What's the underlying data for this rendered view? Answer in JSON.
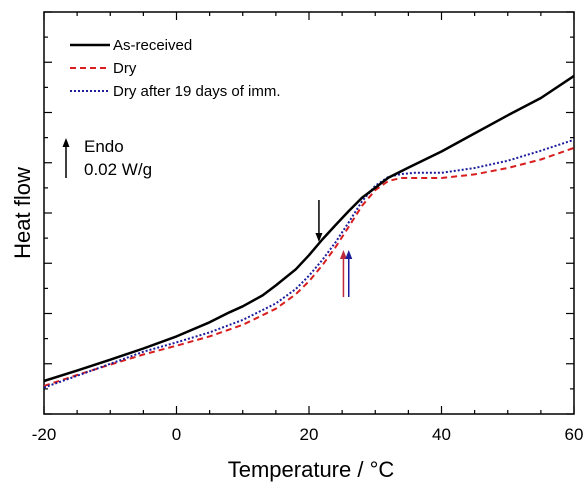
{
  "chart_data": {
    "type": "line",
    "xlabel": "Temperature / °C",
    "ylabel": "Heat flow",
    "xlim": [
      -20,
      60
    ],
    "ylim": [
      0,
      1
    ],
    "x_ticks": [
      -20,
      0,
      20,
      40,
      60
    ],
    "y_ticks_labeled": false,
    "grid": false,
    "legend_position": "top-left",
    "series": [
      {
        "name": "As-received",
        "color": "#000000",
        "style": "solid",
        "x": [
          -20,
          -15,
          -10,
          -5,
          0,
          5,
          8,
          10,
          13,
          15,
          18,
          20,
          22,
          24,
          26,
          28,
          30,
          32,
          35,
          40,
          45,
          50,
          55,
          60
        ],
        "y": [
          0.082,
          0.108,
          0.135,
          0.163,
          0.193,
          0.228,
          0.253,
          0.268,
          0.295,
          0.32,
          0.36,
          0.395,
          0.434,
          0.47,
          0.505,
          0.538,
          0.563,
          0.588,
          0.613,
          0.653,
          0.698,
          0.743,
          0.786,
          0.841
        ]
      },
      {
        "name": "Dry",
        "color": "#d81e1e",
        "style": "dashed",
        "x": [
          -20,
          -15,
          -10,
          -5,
          0,
          5,
          10,
          15,
          18,
          20,
          22,
          24,
          26,
          28,
          30,
          32,
          34,
          36,
          40,
          45,
          50,
          55,
          60
        ],
        "y": [
          0.07,
          0.097,
          0.123,
          0.148,
          0.17,
          0.193,
          0.222,
          0.262,
          0.298,
          0.33,
          0.37,
          0.415,
          0.466,
          0.518,
          0.557,
          0.58,
          0.587,
          0.587,
          0.587,
          0.596,
          0.612,
          0.633,
          0.662
        ]
      },
      {
        "name": "Dry after 19 days of imm.",
        "color": "#1c1c9c",
        "style": "dotted",
        "x": [
          -20,
          -15,
          -10,
          -5,
          0,
          5,
          10,
          15,
          18,
          20,
          22,
          24,
          26,
          28,
          30,
          32,
          34,
          36,
          40,
          45,
          50,
          55,
          60
        ],
        "y": [
          0.066,
          0.095,
          0.125,
          0.155,
          0.178,
          0.203,
          0.234,
          0.275,
          0.311,
          0.344,
          0.383,
          0.427,
          0.477,
          0.529,
          0.568,
          0.59,
          0.597,
          0.6,
          0.6,
          0.612,
          0.63,
          0.655,
          0.682
        ]
      }
    ],
    "annotations": {
      "endo_label": "Endo",
      "scale_label": "0.02 W/g",
      "markers": [
        {
          "color": "#000000",
          "x": 21.5,
          "direction": "down"
        },
        {
          "color": "#c0283c",
          "x": 25.2,
          "direction": "up"
        },
        {
          "color": "#1c1c9c",
          "x": 26.0,
          "direction": "up"
        }
      ]
    }
  }
}
